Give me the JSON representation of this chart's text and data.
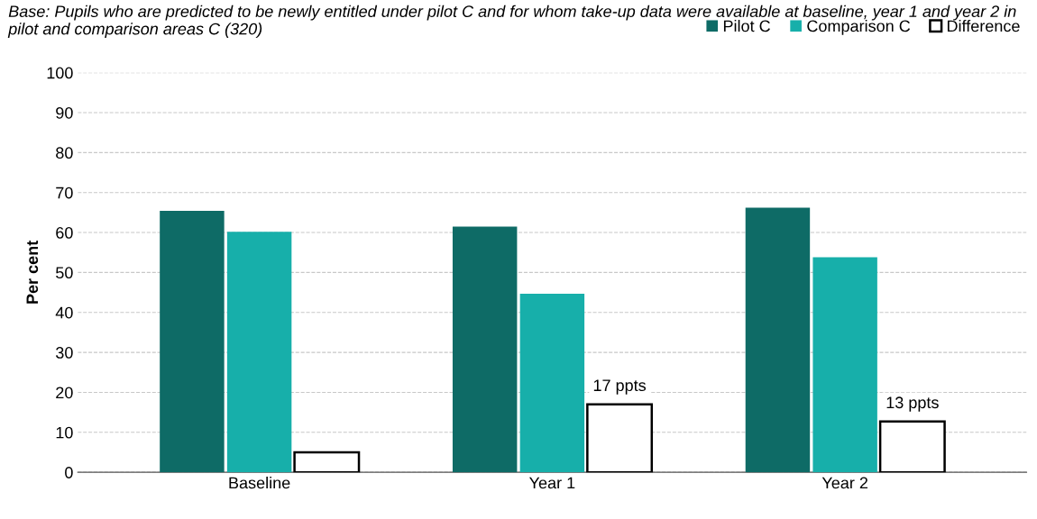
{
  "chart_data": {
    "type": "bar",
    "title": "Base: Pupils who are predicted to be newly entitled under pilot C and for whom take-up data were available at baseline, year 1 and year 2 in pilot and comparison areas C (320)",
    "ylabel": "Per cent",
    "categories": [
      "Baseline",
      "Year 1",
      "Year 2"
    ],
    "series": [
      {
        "name": "Pilot C",
        "color": "#0e6b66",
        "values": [
          65.4,
          61.5,
          66.2
        ]
      },
      {
        "name": "Comparison C",
        "color": "#17afaa",
        "values": [
          60.2,
          44.7,
          53.8
        ]
      },
      {
        "name": "Difference",
        "color": "#ffffff",
        "values": [
          5,
          17,
          12.7
        ],
        "value_labels": [
          null,
          "17 ppts",
          "13 ppts"
        ]
      }
    ],
    "ylim": [
      0,
      100
    ],
    "yticks": [
      0,
      10,
      20,
      30,
      40,
      50,
      60,
      70,
      80,
      90,
      100
    ],
    "grid": "y",
    "legend": "top right"
  }
}
